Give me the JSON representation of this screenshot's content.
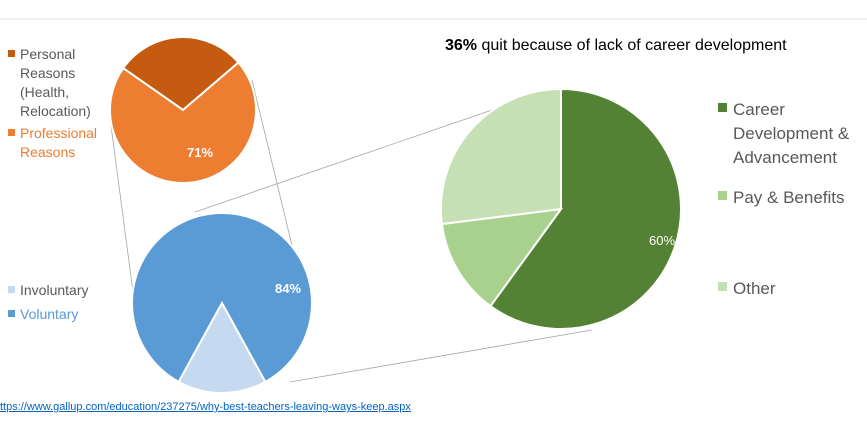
{
  "chart_data": [
    {
      "type": "pie",
      "categories": [
        "Personal Reasons (Health, Relocation)",
        "Professional Reasons"
      ],
      "values": [
        29,
        71
      ],
      "colors": [
        "#c55a11",
        "#ed7d31"
      ],
      "data_labels": [
        "",
        "71%"
      ]
    },
    {
      "type": "pie",
      "categories": [
        "Involuntary",
        "Voluntary"
      ],
      "values": [
        16,
        84
      ],
      "colors": [
        "#c5d9f0",
        "#5b9bd5"
      ],
      "data_labels": [
        "",
        "84%"
      ]
    },
    {
      "type": "pie",
      "title_bold": "36%",
      "title": "quit because of lack of career development",
      "categories": [
        "Career Development & Advancement",
        "Pay & Benefits",
        "Other"
      ],
      "values": [
        60,
        13,
        27
      ],
      "colors": [
        "#548235",
        "#a9d18e",
        "#c5e0b4"
      ],
      "data_labels": [
        "60%",
        "",
        ""
      ],
      "legend": "right"
    }
  ],
  "legend1": {
    "line1": "Personal",
    "line2": "Reasons",
    "line3": "(Health,",
    "line4": "Relocation)",
    "line5": "Professional",
    "line6": "Reasons"
  },
  "legend2": {
    "item1": "Involuntary",
    "item2": "Voluntary"
  },
  "legend3": {
    "line1": "Career",
    "line2": "Development &",
    "line3": "Advancement",
    "item2": "Pay & Benefits",
    "item3": "Other"
  },
  "source_link": "ttps://www.gallup.com/education/237275/why-best-teachers-leaving-ways-keep.aspx"
}
